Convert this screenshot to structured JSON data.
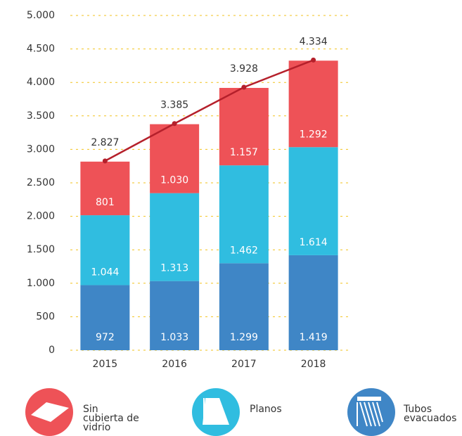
{
  "chart_data": {
    "type": "stacked-bar",
    "categories": [
      "2015",
      "2016",
      "2017",
      "2018"
    ],
    "series": [
      {
        "name": "Tubos evacuados",
        "color": "#3f86c6",
        "values": [
          972,
          1033,
          1299,
          1419
        ],
        "value_labels": [
          "972",
          "1.033",
          "1.299",
          "1.419"
        ]
      },
      {
        "name": "Planos",
        "color": "#30bde0",
        "values": [
          1044,
          1313,
          1462,
          1614
        ],
        "value_labels": [
          "1.044",
          "1.313",
          "1.462",
          "1.614"
        ]
      },
      {
        "name": "Sin cubierta de vidrio",
        "color": "#ee5257",
        "values": [
          801,
          1030,
          1157,
          1292
        ],
        "value_labels": [
          "801",
          "1.030",
          "1.157",
          "1.292"
        ]
      }
    ],
    "totals": {
      "color": "#b5202b",
      "values": [
        2827,
        3385,
        3928,
        4334
      ],
      "value_labels": [
        "2.827",
        "3.385",
        "3.928",
        "4.334"
      ]
    },
    "ylim": [
      0,
      5000
    ],
    "yticks": [
      0,
      500,
      {
        "value": 1000,
        "label": "1.000"
      },
      {
        "value": 1500,
        "label": "1.500"
      },
      {
        "value": 2000,
        "label": "2.000"
      },
      {
        "value": 2500,
        "label": "2.500"
      },
      {
        "value": 3000,
        "label": "3.000"
      },
      {
        "value": 3500,
        "label": "3.500"
      },
      {
        "value": 4000,
        "label": "4.000"
      },
      {
        "value": 4500,
        "label": "4.500"
      },
      {
        "value": 5000,
        "label": "5.000"
      }
    ],
    "grid": true
  }
}
